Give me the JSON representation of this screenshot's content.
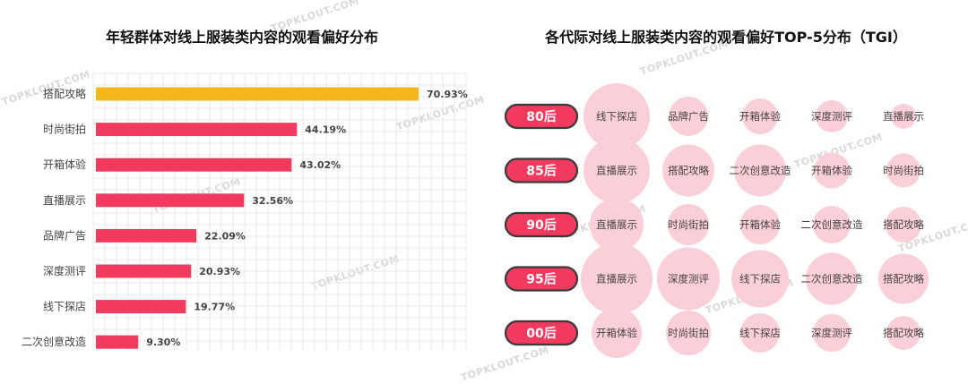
{
  "watermark": "TOPKLOUT.COM",
  "colors": {
    "highlight": "#F4B81C",
    "bar": "#F23A5F",
    "pill": "#F23A5F",
    "bubble": "#FBCFD8"
  },
  "chart_data": [
    {
      "type": "bar",
      "title": "年轻群体对线上服装类内容的观看偏好分布",
      "categories": [
        "搭配攻略",
        "时尚街拍",
        "开箱体验",
        "直播展示",
        "品牌广告",
        "深度测评",
        "线下探店",
        "二次创意改造"
      ],
      "values": [
        70.93,
        44.19,
        43.02,
        32.56,
        22.09,
        20.93,
        19.77,
        9.3
      ],
      "value_labels": [
        "70.93%",
        "44.19%",
        "43.02%",
        "32.56%",
        "22.09%",
        "20.93%",
        "19.77%",
        "9.30%"
      ],
      "orientation": "horizontal",
      "grid": true
    },
    {
      "type": "bubble",
      "title": "各代际对线上服装类内容的观看偏好TOP-5分布（TGI）",
      "rows": [
        {
          "label": "80后",
          "items": [
            "线下探店",
            "品牌广告",
            "开箱体验",
            "深度测评",
            "直播展示"
          ],
          "sizes": [
            37,
            22,
            20,
            18,
            14
          ]
        },
        {
          "label": "85后",
          "items": [
            "直播展示",
            "搭配攻略",
            "二次创意改造",
            "开箱体验",
            "时尚街拍"
          ],
          "sizes": [
            37,
            29,
            29,
            20,
            19
          ]
        },
        {
          "label": "90后",
          "items": [
            "直播展示",
            "时尚街拍",
            "开箱体验",
            "二次创意改造",
            "搭配攻略"
          ],
          "sizes": [
            30,
            23,
            22,
            21,
            20
          ]
        },
        {
          "label": "95后",
          "items": [
            "直播展示",
            "深度测评",
            "线下探店",
            "二次创意改造",
            "搭配攻略"
          ],
          "sizes": [
            40,
            35,
            32,
            29,
            28
          ]
        },
        {
          "label": "00后",
          "items": [
            "开箱体验",
            "时尚街拍",
            "线下探店",
            "深度测评",
            "搭配攻略"
          ],
          "sizes": [
            28,
            25,
            22,
            21,
            19
          ]
        }
      ]
    }
  ]
}
